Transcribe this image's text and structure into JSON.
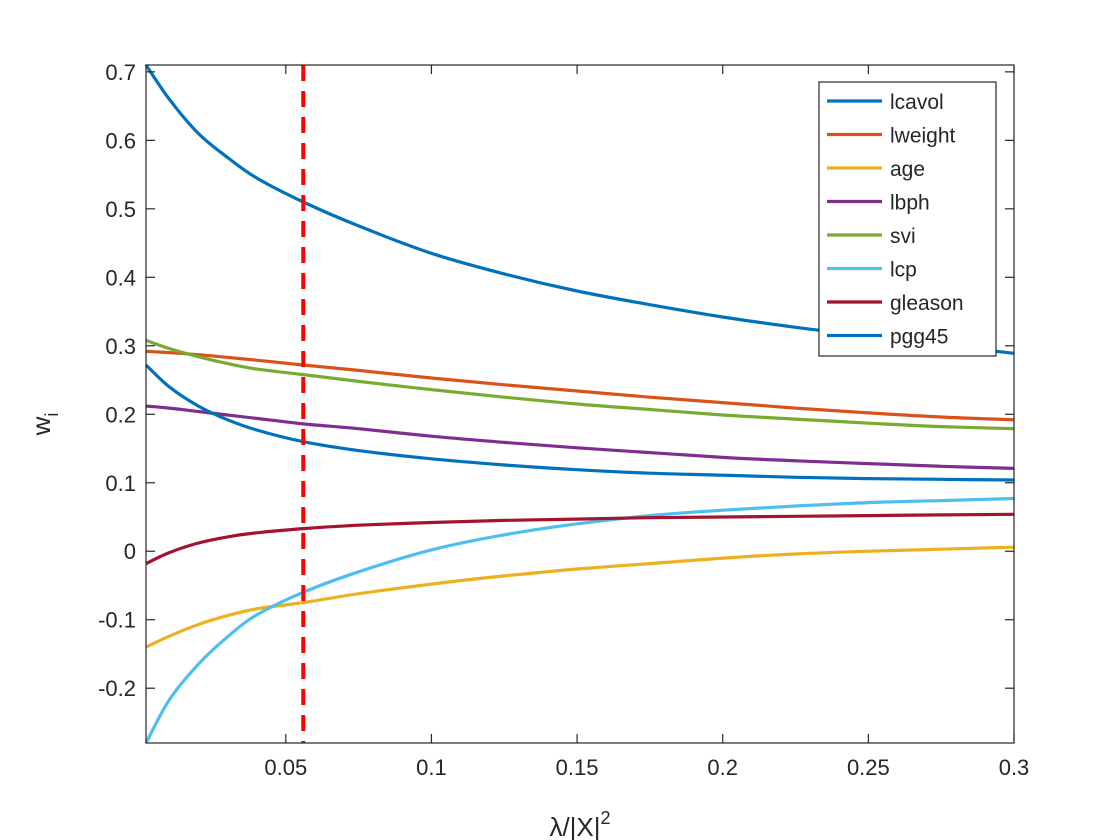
{
  "chart_data": {
    "type": "line",
    "title": "",
    "xlabel_main": "λ/|X|",
    "xlabel_sup": "2",
    "ylabel_main": "w",
    "ylabel_sub": "i",
    "xlim": [
      0.002,
      0.3
    ],
    "ylim": [
      -0.28,
      0.71
    ],
    "xticks": [
      0.05,
      0.1,
      0.15,
      0.2,
      0.25,
      0.3
    ],
    "xtick_labels": [
      "0.05",
      "0.1",
      "0.15",
      "0.2",
      "0.25",
      "0.3"
    ],
    "yticks": [
      -0.2,
      -0.1,
      0,
      0.1,
      0.2,
      0.3,
      0.4,
      0.5,
      0.6,
      0.7
    ],
    "ytick_labels": [
      "-0.2",
      "-0.1",
      "0",
      "0.1",
      "0.2",
      "0.3",
      "0.4",
      "0.5",
      "0.6",
      "0.7"
    ],
    "grid": false,
    "legend_position": "top-right",
    "x": [
      0.002,
      0.01,
      0.02,
      0.03,
      0.04,
      0.056,
      0.075,
      0.1,
      0.125,
      0.15,
      0.175,
      0.2,
      0.225,
      0.25,
      0.275,
      0.3
    ],
    "series": [
      {
        "name": "lcavol",
        "color": "#0072BD",
        "values": [
          0.71,
          0.66,
          0.61,
          0.575,
          0.545,
          0.51,
          0.475,
          0.435,
          0.405,
          0.38,
          0.36,
          0.342,
          0.327,
          0.314,
          0.301,
          0.289
        ]
      },
      {
        "name": "lweight",
        "color": "#D95319",
        "values": [
          0.292,
          0.29,
          0.287,
          0.283,
          0.279,
          0.272,
          0.264,
          0.253,
          0.243,
          0.234,
          0.225,
          0.217,
          0.209,
          0.202,
          0.196,
          0.192
        ]
      },
      {
        "name": "age",
        "color": "#EDB120",
        "values": [
          -0.14,
          -0.124,
          -0.107,
          -0.094,
          -0.084,
          -0.075,
          -0.062,
          -0.048,
          -0.036,
          -0.026,
          -0.018,
          -0.01,
          -0.004,
          0.0,
          0.003,
          0.006
        ]
      },
      {
        "name": "lbph",
        "color": "#7E2F8E",
        "values": [
          0.212,
          0.209,
          0.204,
          0.199,
          0.194,
          0.186,
          0.179,
          0.168,
          0.159,
          0.151,
          0.144,
          0.137,
          0.132,
          0.128,
          0.124,
          0.121
        ]
      },
      {
        "name": "svi",
        "color": "#77AC30",
        "values": [
          0.308,
          0.296,
          0.284,
          0.274,
          0.266,
          0.258,
          0.248,
          0.236,
          0.225,
          0.215,
          0.207,
          0.199,
          0.193,
          0.187,
          0.182,
          0.179
        ]
      },
      {
        "name": "lcp",
        "color": "#4DBEEE",
        "values": [
          -0.28,
          -0.217,
          -0.165,
          -0.125,
          -0.093,
          -0.06,
          -0.03,
          0.002,
          0.024,
          0.04,
          0.052,
          0.06,
          0.066,
          0.071,
          0.074,
          0.077
        ]
      },
      {
        "name": "gleason",
        "color": "#A2142F",
        "values": [
          -0.018,
          -0.002,
          0.012,
          0.021,
          0.027,
          0.033,
          0.038,
          0.042,
          0.045,
          0.047,
          0.049,
          0.05,
          0.051,
          0.052,
          0.053,
          0.054
        ]
      },
      {
        "name": "pgg45",
        "color": "#0072BD",
        "values": [
          0.272,
          0.24,
          0.212,
          0.192,
          0.177,
          0.16,
          0.147,
          0.135,
          0.126,
          0.119,
          0.114,
          0.111,
          0.108,
          0.106,
          0.105,
          0.104
        ]
      }
    ],
    "annotations": [
      {
        "type": "vertical-dashed-line",
        "x": 0.056,
        "color": "#FF0000"
      }
    ]
  }
}
